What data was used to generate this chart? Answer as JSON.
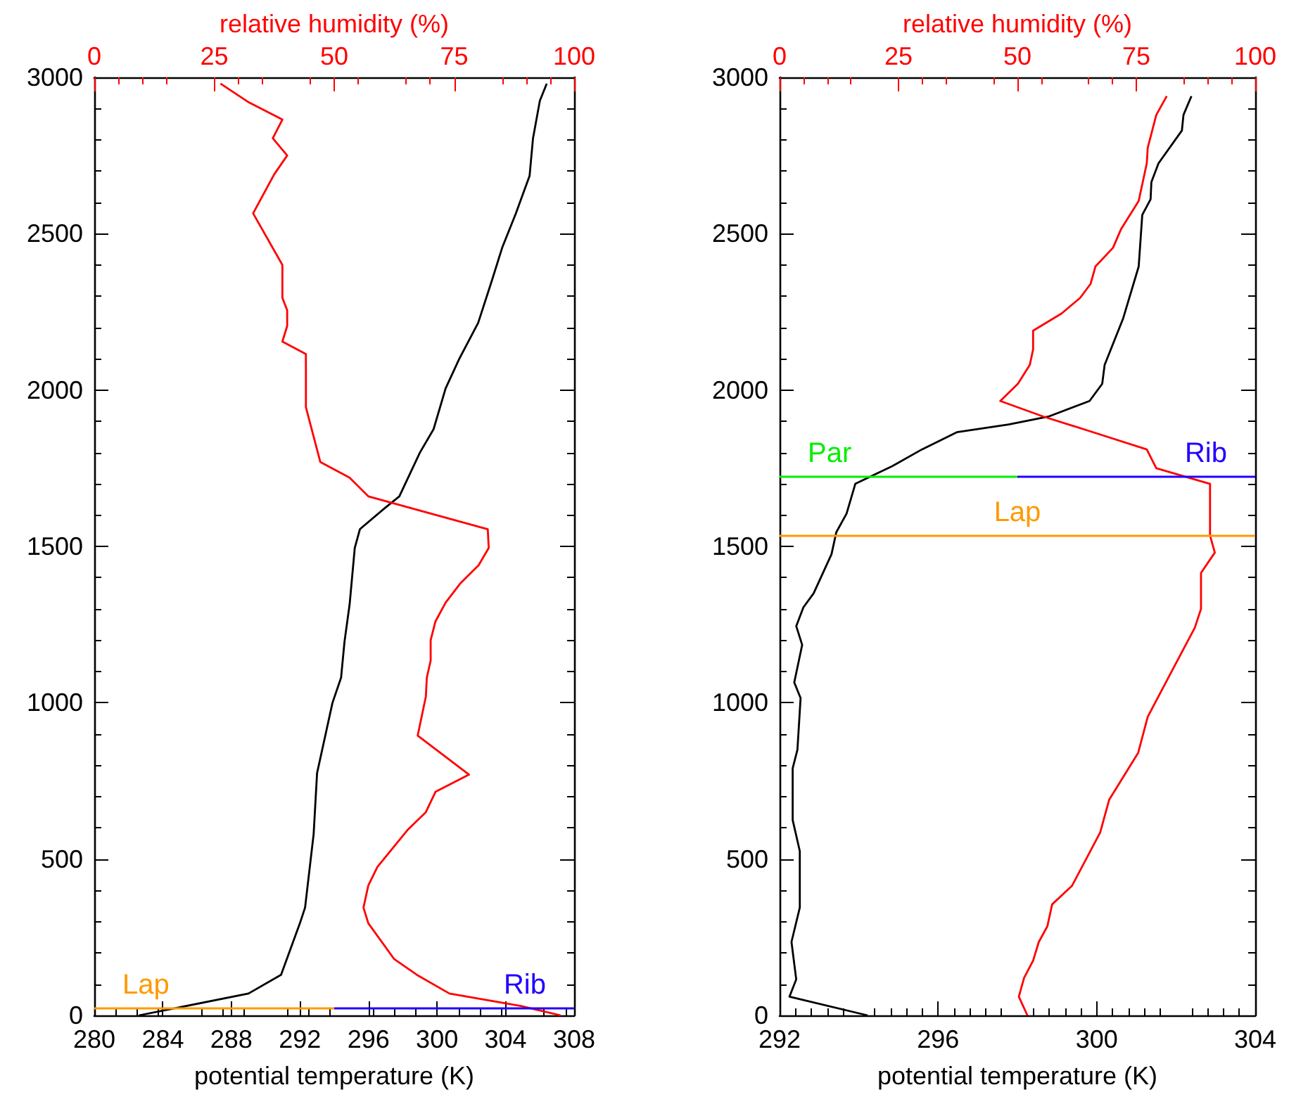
{
  "chart_data": [
    {
      "type": "line",
      "xlabel": "potential temperature (K)",
      "x2label": "relative humidity (%)",
      "xlim": [
        280,
        308
      ],
      "xticks": [
        280,
        284,
        288,
        292,
        296,
        300,
        304,
        308
      ],
      "x2lim": [
        0,
        100
      ],
      "x2ticks": [
        0,
        25,
        50,
        75,
        100
      ],
      "ylim": [
        0,
        3000
      ],
      "yticks": [
        0,
        500,
        1000,
        1500,
        2000,
        2500,
        3000
      ],
      "series": [
        {
          "color": "#000000",
          "x": [
            306.4,
            306.0,
            305.6,
            305.4,
            305.0,
            304.6,
            303.8,
            303.2,
            302.4,
            301.3,
            300.5,
            299.8,
            299.0,
            297.8,
            296.9,
            295.5,
            295.2,
            294.9,
            294.6,
            294.4,
            293.9,
            293.0,
            292.8,
            292.3,
            292.0,
            290.9,
            289.0,
            284.9,
            282.6
          ],
          "values": [
            2980,
            2925,
            2805,
            2685,
            2625,
            2565,
            2455,
            2350,
            2215,
            2100,
            2005,
            1875,
            1800,
            1660,
            1620,
            1555,
            1495,
            1315,
            1195,
            1080,
            1000,
            775,
            580,
            345,
            295,
            130,
            70,
            25,
            0
          ]
        },
        {
          "color": "#ff0000",
          "axis": "x2",
          "x": [
            26.3,
            32.2,
            39.2,
            37.2,
            40.2,
            37.5,
            33.1,
            39.2,
            39.2,
            40.2,
            40.2,
            39.2,
            44.1,
            44.1,
            47.1,
            53.2,
            57.1,
            82.0,
            82.2,
            80.1,
            76.2,
            73.2,
            71.1,
            70.1,
            70.1,
            69.3,
            69.1,
            67.4,
            78.1,
            71.1,
            69.1,
            65.4,
            59.0,
            57.1,
            56.1,
            57.1,
            62.5,
            67.2,
            74.0,
            88.9,
            97.2
          ],
          "values": [
            2980,
            2920,
            2865,
            2805,
            2750,
            2690,
            2565,
            2400,
            2295,
            2255,
            2205,
            2155,
            2115,
            1945,
            1770,
            1720,
            1660,
            1555,
            1495,
            1440,
            1380,
            1320,
            1260,
            1200,
            1135,
            1080,
            1020,
            895,
            770,
            715,
            650,
            595,
            475,
            415,
            345,
            295,
            180,
            130,
            70,
            30,
            0
          ]
        }
      ],
      "ref_lines": [
        {
          "axis": "y",
          "value": 25,
          "label": "Lap",
          "color": "#ff9900"
        },
        {
          "axis": "y",
          "value": 25,
          "label": "Rib",
          "color": "#2200ff"
        }
      ]
    },
    {
      "type": "line",
      "xlabel": "potential temperature (K)",
      "x2label": "relative humidity (%)",
      "xlim": [
        292,
        304
      ],
      "xticks": [
        292,
        296,
        300,
        304
      ],
      "x2lim": [
        0,
        100
      ],
      "x2ticks": [
        0,
        25,
        50,
        75,
        100
      ],
      "ylim": [
        0,
        3000
      ],
      "yticks": [
        0,
        500,
        1000,
        1500,
        2000,
        2500,
        3000
      ],
      "series": [
        {
          "color": "#000000",
          "x": [
            302.39,
            302.19,
            302.15,
            301.56,
            301.38,
            301.36,
            301.15,
            301.06,
            300.67,
            300.2,
            300.14,
            299.82,
            298.78,
            297.78,
            296.47,
            295.59,
            294.82,
            293.91,
            293.69,
            293.43,
            293.31,
            292.86,
            292.6,
            292.42,
            292.57,
            292.37,
            292.53,
            292.45,
            292.33,
            292.33,
            292.51,
            292.51,
            292.3,
            292.42,
            292.25,
            294.22
          ],
          "values": [
            2940,
            2880,
            2830,
            2725,
            2665,
            2610,
            2560,
            2395,
            2230,
            2080,
            2020,
            1965,
            1915,
            1890,
            1865,
            1810,
            1755,
            1700,
            1605,
            1545,
            1475,
            1350,
            1305,
            1245,
            1185,
            1065,
            1015,
            850,
            790,
            625,
            525,
            345,
            235,
            115,
            60,
            0
          ]
        },
        {
          "color": "#ff0000",
          "axis": "x2",
          "x": [
            81.4,
            79.2,
            77.4,
            77.2,
            75.5,
            71.8,
            70.1,
            66.4,
            65.4,
            63.2,
            59.3,
            53.3,
            53.3,
            52.6,
            50.1,
            46.4,
            55.5,
            64.9,
            77.2,
            79.2,
            90.5,
            90.5,
            91.5,
            88.6,
            88.6,
            87.3,
            82.6,
            77.4,
            75.4,
            69.3,
            67.4,
            61.5,
            57.3,
            56.3,
            54.5,
            53.3,
            51.4,
            50.3,
            52.1
          ],
          "values": [
            2940,
            2880,
            2775,
            2725,
            2605,
            2515,
            2455,
            2395,
            2340,
            2295,
            2245,
            2190,
            2130,
            2080,
            2020,
            1965,
            1915,
            1870,
            1810,
            1750,
            1700,
            1535,
            1480,
            1415,
            1300,
            1240,
            1105,
            955,
            840,
            690,
            585,
            415,
            355,
            285,
            235,
            175,
            120,
            60,
            0
          ]
        }
      ],
      "ref_lines": [
        {
          "axis": "y",
          "value": 1725,
          "label": "Par",
          "color": "#00ee00"
        },
        {
          "axis": "y",
          "value": 1725,
          "label": "Rib",
          "color": "#2200ff"
        },
        {
          "axis": "y",
          "value": 1535,
          "label": "Lap",
          "color": "#ff9900"
        }
      ]
    }
  ]
}
